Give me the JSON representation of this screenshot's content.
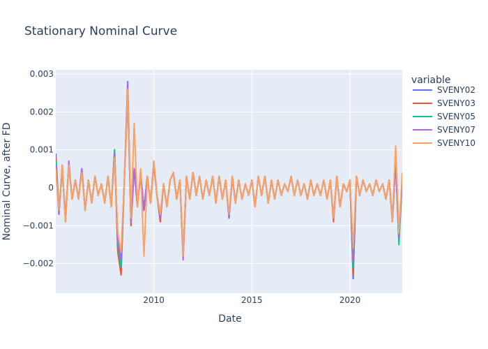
{
  "chart_data": {
    "type": "line",
    "title": "Stationary Nominal Curve",
    "xlabel": "Date",
    "ylabel": "Nominal Curve, after FD",
    "xlim": [
      "2005-01-01",
      "2022-09-01"
    ],
    "ylim": [
      -0.00278,
      0.00311
    ],
    "x_ticks": [
      {
        "value": "2010-01-01",
        "label": "2010"
      },
      {
        "value": "2015-01-01",
        "label": "2015"
      },
      {
        "value": "2020-01-01",
        "label": "2020"
      }
    ],
    "y_ticks": [
      {
        "value": -0.002,
        "label": "−0.002"
      },
      {
        "value": -0.001,
        "label": "−0.001"
      },
      {
        "value": 0,
        "label": "0"
      },
      {
        "value": 0.001,
        "label": "0.001"
      },
      {
        "value": 0.002,
        "label": "0.002"
      },
      {
        "value": 0.003,
        "label": "0.003"
      }
    ],
    "grid": true,
    "legend": {
      "title": "variable",
      "position": "right"
    },
    "colors": {
      "plot_bg": "#E5ECF6",
      "grid": "#ffffff",
      "text": "#2a3f5f"
    },
    "x": [
      "2005-01",
      "2005-03",
      "2005-05",
      "2005-07",
      "2005-09",
      "2005-11",
      "2006-01",
      "2006-03",
      "2006-05",
      "2006-07",
      "2006-09",
      "2006-11",
      "2007-01",
      "2007-03",
      "2007-05",
      "2007-07",
      "2007-09",
      "2007-11",
      "2008-01",
      "2008-03",
      "2008-05",
      "2008-07",
      "2008-09",
      "2008-11",
      "2009-01",
      "2009-03",
      "2009-05",
      "2009-07",
      "2009-09",
      "2009-11",
      "2010-01",
      "2010-03",
      "2010-05",
      "2010-07",
      "2010-09",
      "2010-11",
      "2011-01",
      "2011-03",
      "2011-05",
      "2011-07",
      "2011-09",
      "2011-11",
      "2012-01",
      "2012-03",
      "2012-05",
      "2012-07",
      "2012-09",
      "2012-11",
      "2013-01",
      "2013-03",
      "2013-05",
      "2013-07",
      "2013-09",
      "2013-11",
      "2014-01",
      "2014-03",
      "2014-05",
      "2014-07",
      "2014-09",
      "2014-11",
      "2015-01",
      "2015-03",
      "2015-05",
      "2015-07",
      "2015-09",
      "2015-11",
      "2016-01",
      "2016-03",
      "2016-05",
      "2016-07",
      "2016-09",
      "2016-11",
      "2017-01",
      "2017-03",
      "2017-05",
      "2017-07",
      "2017-09",
      "2017-11",
      "2018-01",
      "2018-03",
      "2018-05",
      "2018-07",
      "2018-09",
      "2018-11",
      "2019-01",
      "2019-03",
      "2019-05",
      "2019-07",
      "2019-09",
      "2019-11",
      "2020-01",
      "2020-03",
      "2020-05",
      "2020-07",
      "2020-09",
      "2020-11",
      "2021-01",
      "2021-03",
      "2021-05",
      "2021-07",
      "2021-09",
      "2021-11",
      "2022-01",
      "2022-03",
      "2022-05",
      "2022-07",
      "2022-09"
    ],
    "series": [
      {
        "name": "SVENY02",
        "color": "#636efa",
        "values": [
          0.0009,
          -0.0006,
          0.0005,
          -0.0008,
          0.0006,
          -0.0003,
          0.0002,
          -0.0003,
          0.0005,
          -0.0006,
          0.0002,
          -0.0004,
          0.0003,
          -0.0002,
          0.0001,
          -0.0004,
          0.0003,
          -0.0005,
          0.001,
          -0.0017,
          -0.0019,
          0.0002,
          0.0024,
          -0.0009,
          0.0005,
          -0.0004,
          0.0003,
          -0.0006,
          0.0003,
          -0.0004,
          0.0006,
          -0.0002,
          -0.0008,
          0.0001,
          -0.0005,
          0.0002,
          0.0004,
          -0.0003,
          0.0002,
          -0.0018,
          0.0003,
          -0.0003,
          0.0004,
          -0.0002,
          0.0003,
          -0.0003,
          0.0002,
          -0.0002,
          0.0003,
          -0.0004,
          0.0003,
          -0.0003,
          0.0002,
          -0.0008,
          0.0003,
          -0.0004,
          0.0002,
          -0.0003,
          0.0001,
          -0.0002,
          0.0002,
          -0.0005,
          0.0003,
          -0.0002,
          0.0003,
          -0.0004,
          0.0002,
          -0.0003,
          0.0002,
          -0.0002,
          0.0001,
          -0.0001,
          0.0003,
          -0.0002,
          0.0002,
          -0.0002,
          0.0001,
          -0.0003,
          0.0002,
          -0.0002,
          0.0001,
          -0.0002,
          0.0002,
          -0.0003,
          0.0002,
          -0.0008,
          0.0003,
          -0.0005,
          0.0001,
          -0.0001,
          0.0002,
          -0.0024,
          0.0003,
          -0.0002,
          0.0002,
          -0.0001,
          0.0001,
          -0.0002,
          0.0002,
          -0.0001,
          0.0001,
          -0.0003,
          0.0002,
          -0.0008,
          0.0007,
          -0.0014,
          0.0002
        ]
      },
      {
        "name": "SVENY03",
        "color": "#EF553B",
        "values": [
          0.0008,
          -0.0006,
          0.0005,
          -0.0008,
          0.0006,
          -0.0003,
          0.0002,
          -0.0003,
          0.0005,
          -0.0006,
          0.0002,
          -0.0004,
          0.0003,
          -0.0002,
          0.0001,
          -0.0004,
          0.0003,
          -0.0005,
          0.001,
          -0.0017,
          -0.0023,
          0.0002,
          0.0027,
          -0.001,
          0.0005,
          -0.0005,
          0.0004,
          -0.0006,
          0.0003,
          -0.0004,
          0.0006,
          -0.0002,
          -0.0009,
          0.0001,
          -0.0005,
          0.0002,
          0.0004,
          -0.0003,
          0.0002,
          -0.0018,
          0.0003,
          -0.0003,
          0.0004,
          -0.0002,
          0.0003,
          -0.0003,
          0.0002,
          -0.0002,
          0.0003,
          -0.0004,
          0.0003,
          -0.0003,
          0.0002,
          -0.0008,
          0.0003,
          -0.0004,
          0.0002,
          -0.0003,
          0.0001,
          -0.0002,
          0.0002,
          -0.0005,
          0.0003,
          -0.0002,
          0.0003,
          -0.0004,
          0.0002,
          -0.0003,
          0.0002,
          -0.0002,
          0.0001,
          -0.0001,
          0.0003,
          -0.0002,
          0.0002,
          -0.0002,
          0.0001,
          -0.0003,
          0.0002,
          -0.0002,
          0.0001,
          -0.0002,
          0.0002,
          -0.0003,
          0.0002,
          -0.0009,
          0.0003,
          -0.0005,
          0.0001,
          -0.0001,
          0.0002,
          -0.0023,
          0.0003,
          -0.0002,
          0.0002,
          -0.0001,
          0.0001,
          -0.0002,
          0.0002,
          -0.0001,
          0.0001,
          -0.0003,
          0.0002,
          -0.0009,
          0.0007,
          -0.0014,
          0.0002
        ]
      },
      {
        "name": "SVENY05",
        "color": "#00cc96",
        "values": [
          0.0007,
          -0.0007,
          0.0005,
          -0.0009,
          0.0006,
          -0.0003,
          0.0002,
          -0.0003,
          0.0005,
          -0.0006,
          0.0002,
          -0.0004,
          0.0003,
          -0.0002,
          0.0001,
          -0.0004,
          0.0003,
          -0.0005,
          0.001,
          -0.0015,
          -0.0021,
          0.0002,
          0.0028,
          -0.0009,
          0.0005,
          -0.0005,
          0.0004,
          -0.0006,
          0.0003,
          -0.0004,
          0.0007,
          -0.0002,
          -0.0008,
          0.0001,
          -0.0005,
          0.0002,
          0.0004,
          -0.0003,
          0.0002,
          -0.0018,
          0.0003,
          -0.0003,
          0.0004,
          -0.0002,
          0.0003,
          -0.0003,
          0.0002,
          -0.0002,
          0.0003,
          -0.0004,
          0.0003,
          -0.0003,
          0.0002,
          -0.0008,
          0.0003,
          -0.0004,
          0.0002,
          -0.0003,
          0.0001,
          -0.0002,
          0.0002,
          -0.0005,
          0.0003,
          -0.0002,
          0.0003,
          -0.0004,
          0.0002,
          -0.0003,
          0.0002,
          -0.0002,
          0.0001,
          -0.0001,
          0.0003,
          -0.0002,
          0.0002,
          -0.0002,
          0.0001,
          -0.0003,
          0.0002,
          -0.0002,
          0.0001,
          -0.0002,
          0.0002,
          -0.0003,
          0.0002,
          -0.0008,
          0.0003,
          -0.0005,
          0.0001,
          -0.0001,
          0.0002,
          -0.0021,
          0.0003,
          -0.0002,
          0.0002,
          -0.0001,
          0.0001,
          -0.0002,
          0.0002,
          -0.0001,
          0.0001,
          -0.0003,
          0.0002,
          -0.0009,
          0.0007,
          -0.0015,
          0.0002
        ]
      },
      {
        "name": "SVENY07",
        "color": "#ab63fa",
        "values": [
          0.0006,
          -0.0007,
          0.0006,
          -0.0009,
          0.0007,
          -0.0003,
          0.0002,
          -0.0003,
          0.0005,
          -0.0006,
          0.0002,
          -0.0004,
          0.0003,
          -0.0002,
          0.0001,
          -0.0004,
          0.0003,
          -0.0005,
          0.0009,
          -0.0014,
          -0.0019,
          0.0002,
          0.0028,
          -0.0009,
          0.0005,
          -0.0005,
          0.0004,
          -0.0006,
          0.0003,
          -0.0004,
          0.0007,
          -0.0002,
          -0.0008,
          0.0001,
          -0.0005,
          0.0002,
          0.0004,
          -0.0003,
          0.0002,
          -0.0019,
          0.0003,
          -0.0003,
          0.0004,
          -0.0002,
          0.0003,
          -0.0003,
          0.0002,
          -0.0002,
          0.0003,
          -0.0004,
          0.0003,
          -0.0003,
          0.0002,
          -0.0008,
          0.0003,
          -0.0004,
          0.0002,
          -0.0003,
          0.0001,
          -0.0002,
          0.0002,
          -0.0005,
          0.0003,
          -0.0002,
          0.0003,
          -0.0004,
          0.0002,
          -0.0003,
          0.0002,
          -0.0002,
          0.0001,
          -0.0001,
          0.0003,
          -0.0002,
          0.0002,
          -0.0002,
          0.0001,
          -0.0003,
          0.0002,
          -0.0002,
          0.0001,
          -0.0002,
          0.0002,
          -0.0003,
          0.0002,
          -0.0008,
          0.0003,
          -0.0005,
          0.0001,
          -0.0001,
          0.0002,
          -0.0019,
          0.0003,
          -0.0002,
          0.0002,
          -0.0001,
          0.0001,
          -0.0002,
          0.0002,
          -0.0001,
          0.0001,
          -0.0003,
          0.0002,
          -0.0009,
          0.0007,
          -0.0013,
          0.0002
        ]
      },
      {
        "name": "SVENY10",
        "color": "#FFA15A",
        "values": [
          0.0005,
          -0.0006,
          0.0006,
          -0.0009,
          0.0006,
          -0.0003,
          0.0002,
          -0.0003,
          0.0004,
          -0.0006,
          0.0002,
          -0.0004,
          0.0003,
          -0.0002,
          0.0001,
          -0.0004,
          0.0003,
          -0.0005,
          0.0008,
          -0.0012,
          -0.0017,
          0.0002,
          0.0026,
          -0.0008,
          0.0017,
          -0.0005,
          0.0005,
          -0.0018,
          0.0003,
          -0.0004,
          0.0007,
          -0.0002,
          -0.0007,
          0.0001,
          -0.0005,
          0.0002,
          0.0004,
          -0.0003,
          0.0002,
          -0.0018,
          0.0003,
          -0.0003,
          0.0004,
          -0.0002,
          0.0003,
          -0.0003,
          0.0002,
          -0.0002,
          0.0003,
          -0.0004,
          0.0003,
          -0.0003,
          0.0002,
          -0.0007,
          0.0003,
          -0.0004,
          0.0002,
          -0.0003,
          0.0001,
          -0.0002,
          0.0002,
          -0.0005,
          0.0003,
          -0.0002,
          0.0003,
          -0.0004,
          0.0002,
          -0.0003,
          0.0002,
          -0.0002,
          0.0001,
          -0.0001,
          0.0003,
          -0.0002,
          0.0002,
          -0.0002,
          0.0001,
          -0.0003,
          0.0002,
          -0.0002,
          0.0001,
          -0.0002,
          0.0002,
          -0.0003,
          0.0002,
          -0.0008,
          0.0003,
          -0.0005,
          0.0001,
          -0.0001,
          0.0002,
          -0.0016,
          0.0003,
          -0.0002,
          0.0002,
          -0.0001,
          0.0001,
          -0.0002,
          0.0002,
          -0.0001,
          0.0001,
          -0.0003,
          0.0002,
          -0.0009,
          0.0011,
          -0.0012,
          0.0004
        ]
      }
    ]
  }
}
